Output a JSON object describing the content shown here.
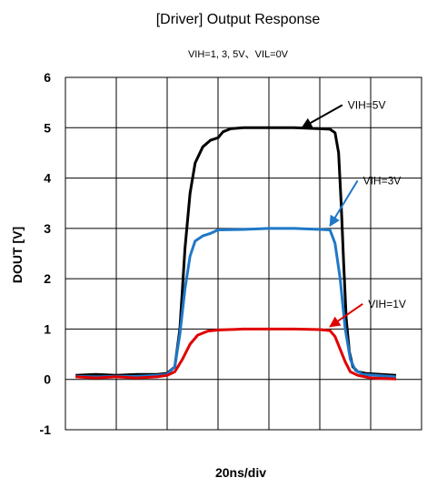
{
  "chart_data": {
    "type": "line",
    "title": "[Driver] Output Response",
    "subtitle": "VIH=1, 3, 5V、VIL=0V",
    "xlabel": "20ns/div",
    "ylabel": "DOUT [V]",
    "ylim": [
      -1,
      6
    ],
    "yticks": [
      "-1",
      "0",
      "1",
      "2",
      "3",
      "4",
      "5",
      "6"
    ],
    "xdivisions": 7,
    "grid": true,
    "series": [
      {
        "name": "VIH=5V",
        "color": "#000000",
        "points": [
          [
            0.2,
            0.08
          ],
          [
            0.6,
            0.1
          ],
          [
            1.0,
            0.08
          ],
          [
            1.4,
            0.1
          ],
          [
            1.8,
            0.1
          ],
          [
            2.0,
            0.12
          ],
          [
            2.15,
            0.25
          ],
          [
            2.25,
            1.0
          ],
          [
            2.35,
            2.6
          ],
          [
            2.45,
            3.7
          ],
          [
            2.55,
            4.3
          ],
          [
            2.7,
            4.62
          ],
          [
            2.85,
            4.75
          ],
          [
            3.0,
            4.8
          ],
          [
            3.1,
            4.92
          ],
          [
            3.25,
            4.98
          ],
          [
            3.5,
            5.0
          ],
          [
            4.0,
            5.0
          ],
          [
            4.5,
            5.0
          ],
          [
            5.0,
            4.98
          ],
          [
            5.2,
            4.97
          ],
          [
            5.3,
            4.9
          ],
          [
            5.37,
            4.5
          ],
          [
            5.42,
            3.5
          ],
          [
            5.47,
            2.3
          ],
          [
            5.52,
            1.2
          ],
          [
            5.58,
            0.55
          ],
          [
            5.65,
            0.25
          ],
          [
            5.75,
            0.15
          ],
          [
            5.9,
            0.12
          ],
          [
            6.2,
            0.1
          ],
          [
            6.5,
            0.08
          ]
        ]
      },
      {
        "name": "VIH=3V",
        "color": "#1f78c8",
        "points": [
          [
            0.2,
            0.06
          ],
          [
            0.6,
            0.05
          ],
          [
            1.0,
            0.06
          ],
          [
            1.4,
            0.06
          ],
          [
            1.8,
            0.08
          ],
          [
            2.0,
            0.1
          ],
          [
            2.15,
            0.25
          ],
          [
            2.25,
            0.9
          ],
          [
            2.35,
            1.8
          ],
          [
            2.45,
            2.45
          ],
          [
            2.55,
            2.75
          ],
          [
            2.7,
            2.85
          ],
          [
            2.85,
            2.9
          ],
          [
            3.0,
            2.97
          ],
          [
            3.5,
            2.98
          ],
          [
            4.0,
            3.0
          ],
          [
            4.5,
            3.0
          ],
          [
            5.0,
            2.98
          ],
          [
            5.2,
            2.97
          ],
          [
            5.3,
            2.7
          ],
          [
            5.4,
            2.0
          ],
          [
            5.5,
            1.0
          ],
          [
            5.6,
            0.4
          ],
          [
            5.7,
            0.18
          ],
          [
            5.85,
            0.1
          ],
          [
            6.1,
            0.08
          ],
          [
            6.5,
            0.05
          ]
        ]
      },
      {
        "name": "VIH=1V",
        "color": "#e00000",
        "points": [
          [
            0.2,
            0.05
          ],
          [
            0.6,
            0.03
          ],
          [
            1.0,
            0.05
          ],
          [
            1.4,
            0.03
          ],
          [
            1.8,
            0.05
          ],
          [
            2.0,
            0.08
          ],
          [
            2.15,
            0.15
          ],
          [
            2.3,
            0.4
          ],
          [
            2.45,
            0.7
          ],
          [
            2.6,
            0.88
          ],
          [
            2.8,
            0.96
          ],
          [
            3.0,
            0.98
          ],
          [
            3.5,
            1.0
          ],
          [
            4.0,
            1.0
          ],
          [
            4.5,
            1.0
          ],
          [
            5.0,
            0.99
          ],
          [
            5.2,
            0.97
          ],
          [
            5.3,
            0.85
          ],
          [
            5.4,
            0.6
          ],
          [
            5.5,
            0.35
          ],
          [
            5.6,
            0.15
          ],
          [
            5.75,
            0.08
          ],
          [
            6.0,
            0.03
          ],
          [
            6.5,
            0.01
          ]
        ]
      }
    ],
    "annotations": [
      {
        "text": "VIH=5V",
        "series": "VIH=5V",
        "arrow_to": [
          4.65,
          5.0
        ],
        "label_at": [
          5.55,
          5.45
        ],
        "color": "#000000"
      },
      {
        "text": "VIH=3V",
        "series": "VIH=3V",
        "arrow_to": [
          5.2,
          3.05
        ],
        "label_at": [
          5.85,
          3.95
        ],
        "color": "#1f78c8"
      },
      {
        "text": "VIH=1V",
        "series": "VIH=1V",
        "arrow_to": [
          5.2,
          1.05
        ],
        "label_at": [
          5.95,
          1.5
        ],
        "color": "#e00000"
      }
    ]
  }
}
